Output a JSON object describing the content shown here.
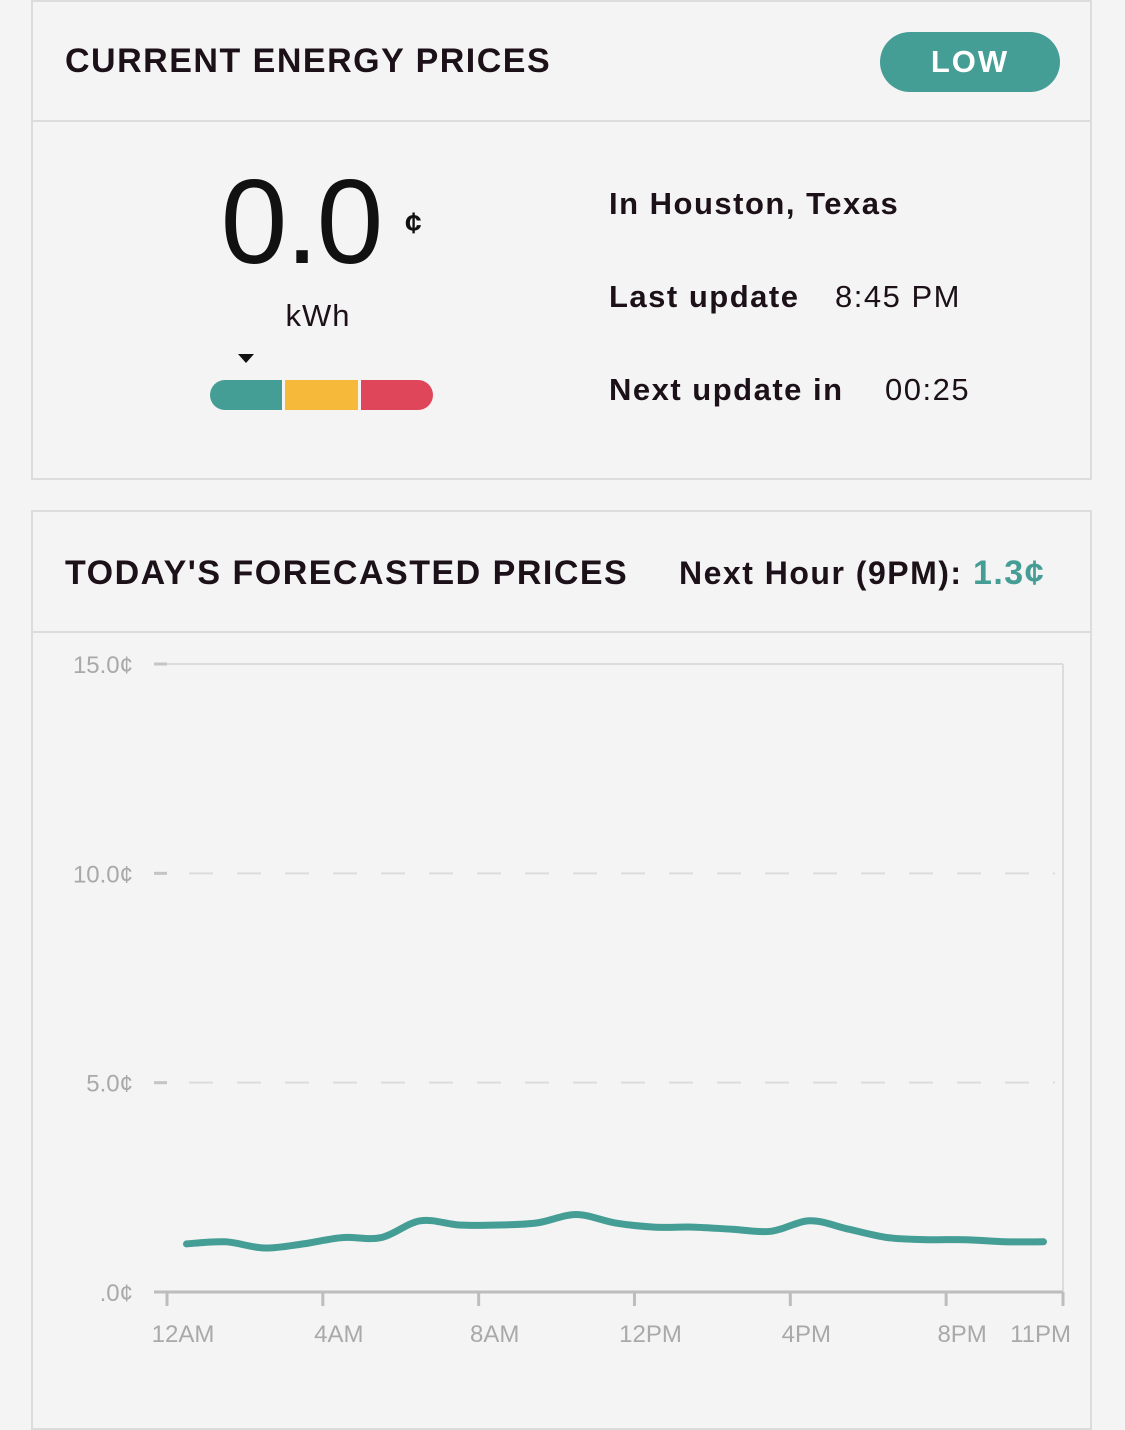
{
  "current": {
    "title": "CURRENT ENERGY PRICES",
    "badge": "LOW",
    "price": "0.0",
    "currency_symbol": "¢",
    "unit": "kWh",
    "level_colors": [
      "#459e95",
      "#f7b93a",
      "#df4659"
    ],
    "location": "In Houston, Texas",
    "last_update_label": "Last update",
    "last_update_value": "8:45 PM",
    "next_update_label": "Next update in",
    "next_update_value": "00:25"
  },
  "forecast": {
    "title": "TODAY'S FORECASTED PRICES",
    "next_hour_label": "Next Hour (9PM):",
    "next_hour_value": "1.3¢"
  },
  "colors": {
    "accent": "#459e95",
    "text": "#1c1118",
    "grid": "#dcdcdc",
    "axis_label": "#a9a9a9"
  },
  "chart_data": {
    "type": "line",
    "ylim": [
      0,
      15
    ],
    "y_ticks": [
      0,
      5,
      10,
      15
    ],
    "y_tick_labels": [
      ".0¢",
      "5.0¢",
      "10.0¢",
      "15.0¢"
    ],
    "x_tick_labels": [
      "12AM",
      "4AM",
      "8AM",
      "12PM",
      "4PM",
      "8PM",
      "11PM"
    ],
    "x_tick_hours": [
      0,
      4,
      8,
      12,
      16,
      20,
      23
    ],
    "grid": true,
    "series": [
      {
        "color": "#459e95",
        "x": [
          0.5,
          1.5,
          2.5,
          3.5,
          4.5,
          5.5,
          6.5,
          7.5,
          8.5,
          9.5,
          10.5,
          11.5,
          12.5,
          13.5,
          14.5,
          15.5,
          16.5,
          17.5,
          18.5,
          19.5,
          20.5,
          21.5,
          22.5
        ],
        "values": [
          1.15,
          1.2,
          1.05,
          1.15,
          1.3,
          1.3,
          1.7,
          1.6,
          1.6,
          1.65,
          1.85,
          1.65,
          1.55,
          1.55,
          1.5,
          1.45,
          1.7,
          1.5,
          1.3,
          1.25,
          1.25,
          1.2,
          1.2
        ]
      }
    ]
  }
}
